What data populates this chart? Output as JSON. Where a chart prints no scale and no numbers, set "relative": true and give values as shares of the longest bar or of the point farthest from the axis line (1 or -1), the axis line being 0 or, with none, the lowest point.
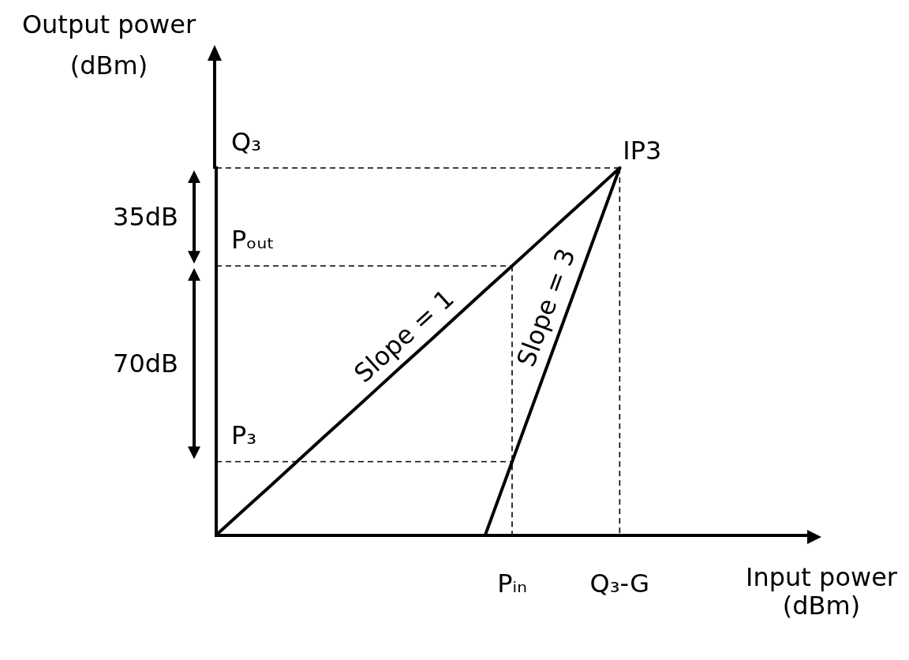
{
  "chart_data": {
    "type": "line",
    "relative": true,
    "xlabel": "Input power (dBm)",
    "ylabel": "Output power (dBm)",
    "categories": [
      null,
      null,
      null,
      null,
      null,
      null,
      null,
      null,
      null,
      null,
      null,
      "Pᵢₙ",
      null,
      null,
      null,
      "Q₃-G",
      null,
      null,
      null,
      null,
      null,
      null,
      null
    ],
    "marker": "none",
    "line_style": "solid",
    "series": [
      {
        "name": "Slope = 1",
        "color": "#000000",
        "values": [
          0,
          0.067,
          0.133,
          0.2,
          0.267,
          0.333,
          0.4,
          0.467,
          0.533,
          0.6,
          0.667,
          0.733,
          0.8,
          0.867,
          0.933,
          1,
          null,
          null,
          null,
          null,
          null,
          null,
          null
        ]
      },
      {
        "name": "Slope = 3",
        "color": "#000000",
        "values": [
          null,
          null,
          null,
          null,
          null,
          null,
          null,
          null,
          null,
          null,
          0,
          0.2,
          0.4,
          0.6,
          0.8,
          1,
          null,
          null,
          null,
          null,
          null,
          null,
          null
        ]
      },
      {
        "color": "#000000",
        "line_style": "dashed",
        "values": [
          1,
          1,
          1,
          1,
          1,
          1,
          1,
          1,
          1,
          1,
          1,
          1,
          1,
          1,
          1,
          1,
          null,
          null,
          null,
          null,
          null,
          null,
          null
        ]
      },
      {
        "color": "#000000",
        "line_style": "dashed",
        "values": [
          0.733,
          0.733,
          0.733,
          0.733,
          0.733,
          0.733,
          0.733,
          0.733,
          0.733,
          0.733,
          0.733,
          0.733,
          null,
          null,
          null,
          null,
          null,
          null,
          null,
          null,
          null,
          null,
          null
        ]
      },
      {
        "color": "#000000",
        "line_style": "dashed",
        "values": [
          0.2,
          0.2,
          0.2,
          0.2,
          0.2,
          0.2,
          0.2,
          0.2,
          0.2,
          0.2,
          0.2,
          0.2,
          null,
          null,
          null,
          null,
          null,
          null,
          null,
          null,
          null,
          null,
          null
        ]
      },
      {
        "color": "#000000",
        "line_style": "dashed",
        "x": [
          "Pᵢₙ",
          "Pᵢₙ"
        ],
        "values": [
          0.733,
          0
        ]
      },
      {
        "color": "#000000",
        "line_style": "dashed",
        "x": [
          "Q₃-G",
          "Q₃-G"
        ],
        "values": [
          1,
          0
        ]
      }
    ],
    "annotations": [
      {
        "text": "IP3",
        "x": "Q₃-G",
        "y": 1
      },
      {
        "text": "Q₃",
        "y": 1
      },
      {
        "text": "Pₒᵤₜ",
        "y": 0.733
      },
      {
        "text": "P₃",
        "y": 0.2
      },
      "35dB",
      "70dB"
    ]
  }
}
